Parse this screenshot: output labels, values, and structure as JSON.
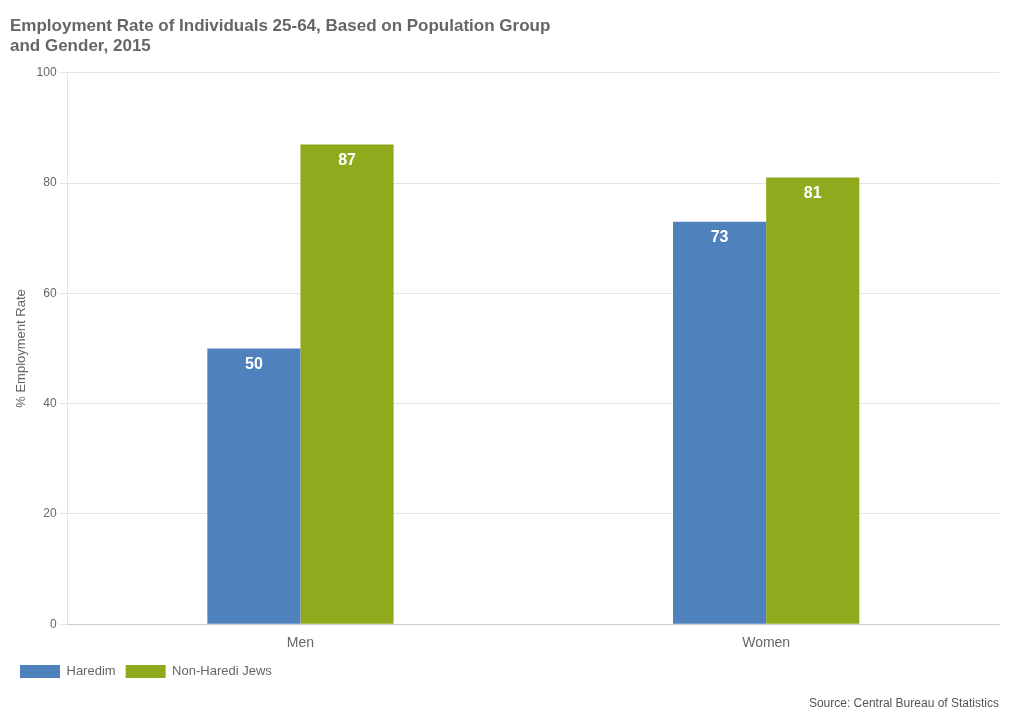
{
  "chart_data": {
    "type": "bar",
    "title": "Employment Rate of Individuals 25-64, Based on Population Group\nand Gender, 2015",
    "y_label": "% Employment Rate",
    "categories": [
      "Men",
      "Women"
    ],
    "series": [
      {
        "name": "Haredim",
        "color": "#4f81bd",
        "values": [
          50,
          73
        ]
      },
      {
        "name": "Non-Haredi Jews",
        "color": "#8faa1c",
        "values": [
          87,
          81
        ]
      }
    ],
    "ylim": [
      0,
      100
    ],
    "yticks": [
      0,
      20,
      40,
      60,
      80,
      100
    ],
    "grid": true,
    "legend": "lower left",
    "data_labels": true,
    "annotations": [
      "Source: Central Bureau of Statistics"
    ]
  }
}
